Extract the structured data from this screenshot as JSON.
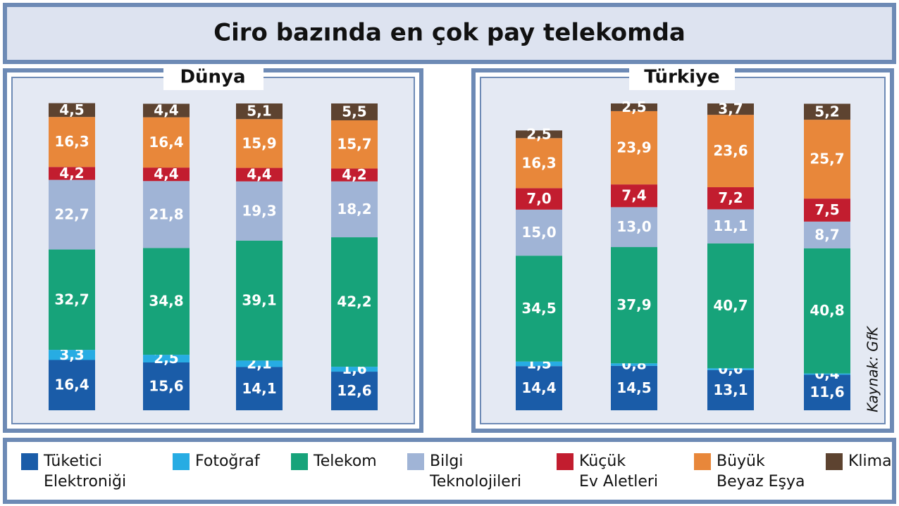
{
  "title": "Ciro bazında en çok pay telekomda",
  "source": "Kaynak: GfK",
  "legend": [
    "Tüketici\nElektroniği",
    "Fotoğraf",
    "Telekom",
    "Bilgi\nTeknolojileri",
    "Küçük\nEv Aletleri",
    "Büyük\nBeyaz Eşya",
    "Klima"
  ],
  "chart_data": [
    {
      "type": "bar",
      "stacked": true,
      "title": "Dünya",
      "categories": [
        null,
        null,
        null,
        null
      ],
      "ylim": [
        0,
        100
      ],
      "series": [
        {
          "color": "#1a5ca8",
          "values": [
            16.4,
            15.6,
            14.1,
            12.6
          ],
          "value_labels": [
            "16,4",
            "15,6",
            "14,1",
            "12,6"
          ]
        },
        {
          "color": "#27ace3",
          "values": [
            3.3,
            2.5,
            2.1,
            1.6
          ],
          "value_labels": [
            "3,3",
            "2,5",
            "2,1",
            "1,6"
          ]
        },
        {
          "color": "#17a37a",
          "values": [
            32.7,
            34.8,
            39.1,
            42.2
          ],
          "value_labels": [
            "32,7",
            "34,8",
            "39,1",
            "42,2"
          ]
        },
        {
          "color": "#a0b4d6",
          "values": [
            22.7,
            21.8,
            19.3,
            18.2
          ],
          "value_labels": [
            "22,7",
            "21,8",
            "19,3",
            "18,2"
          ]
        },
        {
          "color": "#c21d2f",
          "values": [
            4.2,
            4.4,
            4.4,
            4.2
          ],
          "value_labels": [
            "4,2",
            "4,4",
            "4,4",
            "4,2"
          ]
        },
        {
          "color": "#e8873a",
          "values": [
            16.3,
            16.4,
            15.9,
            15.7
          ],
          "value_labels": [
            "16,3",
            "16,4",
            "15,9",
            "15,7"
          ]
        },
        {
          "color": "#5d4330",
          "values": [
            4.5,
            4.4,
            5.1,
            5.5
          ],
          "value_labels": [
            "4,5",
            "4,4",
            "5,1",
            "5,5"
          ]
        }
      ]
    },
    {
      "type": "bar",
      "stacked": true,
      "title": "Türkiye",
      "categories": [
        null,
        null,
        null,
        null
      ],
      "ylim": [
        0,
        100
      ],
      "series": [
        {
          "color": "#1a5ca8",
          "values": [
            14.4,
            14.5,
            13.1,
            11.6
          ],
          "value_labels": [
            "14,4",
            "14,5",
            "13,1",
            "11,6"
          ]
        },
        {
          "color": "#27ace3",
          "values": [
            1.5,
            0.8,
            0.6,
            0.4
          ],
          "value_labels": [
            "1,5",
            "0,8",
            "0,6",
            "0,4"
          ]
        },
        {
          "color": "#17a37a",
          "values": [
            34.5,
            37.9,
            40.7,
            40.8
          ],
          "value_labels": [
            "34,5",
            "37,9",
            "40,7",
            "40,8"
          ]
        },
        {
          "color": "#a0b4d6",
          "values": [
            15.0,
            13.0,
            11.1,
            8.7
          ],
          "value_labels": [
            "15,0",
            "13,0",
            "11,1",
            "8,7"
          ]
        },
        {
          "color": "#c21d2f",
          "values": [
            7.0,
            7.4,
            7.2,
            7.5
          ],
          "value_labels": [
            "7,0",
            "7,4",
            "7,2",
            "7,5"
          ]
        },
        {
          "color": "#e8873a",
          "values": [
            16.3,
            23.9,
            23.6,
            25.7
          ],
          "value_labels": [
            "16,3",
            "23,9",
            "23,6",
            "25,7"
          ]
        },
        {
          "color": "#5d4330",
          "values": [
            2.5,
            2.5,
            3.7,
            5.2
          ],
          "value_labels": [
            "2,5",
            "2,5",
            "3,7",
            "5,2"
          ]
        }
      ]
    }
  ]
}
